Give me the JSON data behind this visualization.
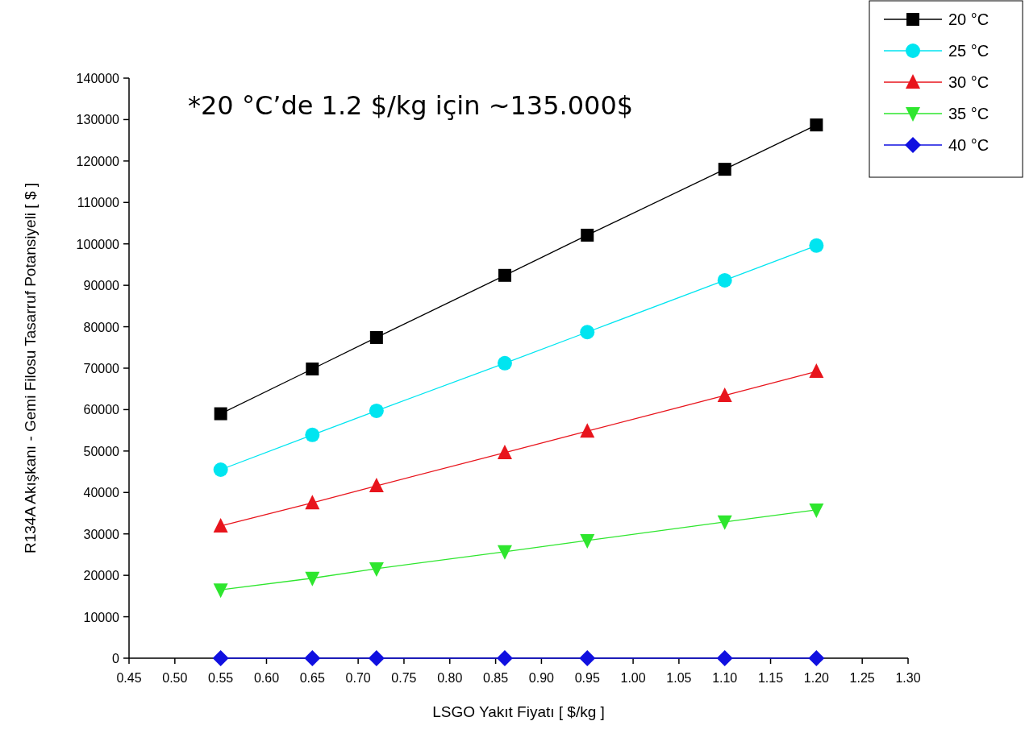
{
  "chart_data": {
    "type": "line",
    "xlabel": "LSGO Yakıt Fiyatı [ $/kg ]",
    "ylabel": "R134A Akışkanı -  Gemi Filosu Tasarruf Potansiyeli [ $ ]",
    "annotations": [
      "*20 °C’de 1.2 $/kg için ~135.000$"
    ],
    "x": [
      0.55,
      0.65,
      0.72,
      0.86,
      0.95,
      1.1,
      1.2
    ],
    "series": [
      {
        "name": "20 °C",
        "color": "#000000",
        "marker": "square",
        "values": [
          59000,
          69800,
          77400,
          92400,
          102100,
          118000,
          128700
        ]
      },
      {
        "name": "25 °C",
        "color": "#00e5f0",
        "marker": "circle",
        "values": [
          45500,
          53900,
          59700,
          71200,
          78700,
          91200,
          99600
        ]
      },
      {
        "name": "30 °C",
        "color": "#e8141c",
        "marker": "triangle",
        "values": [
          31900,
          37500,
          41600,
          49600,
          54800,
          63400,
          69200
        ]
      },
      {
        "name": "35 °C",
        "color": "#2ee62e",
        "marker": "triangle-down",
        "values": [
          16500,
          19300,
          21600,
          25700,
          28400,
          32900,
          35800
        ]
      },
      {
        "name": "40 °C",
        "color": "#1010e0",
        "marker": "diamond",
        "values": [
          0,
          0,
          0,
          0,
          0,
          0,
          0
        ]
      }
    ],
    "xlim": [
      0.45,
      1.3
    ],
    "xticks": [
      {
        "value": 0.45,
        "label": "0.45"
      },
      {
        "value": 0.5,
        "label": "0.50"
      },
      {
        "value": 0.55,
        "label": "0.55"
      },
      {
        "value": 0.6,
        "label": "0.60"
      },
      {
        "value": 0.65,
        "label": "0.65"
      },
      {
        "value": 0.7,
        "label": "0.70"
      },
      {
        "value": 0.75,
        "label": "0.75"
      },
      {
        "value": 0.8,
        "label": "0.80"
      },
      {
        "value": 0.85,
        "label": "0.85"
      },
      {
        "value": 0.9,
        "label": "0.90"
      },
      {
        "value": 0.95,
        "label": "0.95"
      },
      {
        "value": 1.0,
        "label": "1.00"
      },
      {
        "value": 1.05,
        "label": "1.05"
      },
      {
        "value": 1.1,
        "label": "1.10"
      },
      {
        "value": 1.15,
        "label": "1.15"
      },
      {
        "value": 1.2,
        "label": "1.20"
      },
      {
        "value": 1.25,
        "label": "1.25"
      },
      {
        "value": 1.3,
        "label": "1.30"
      }
    ],
    "ylim": [
      0,
      140000
    ],
    "yticks": [
      0,
      10000,
      20000,
      30000,
      40000,
      50000,
      60000,
      70000,
      80000,
      90000,
      100000,
      110000,
      120000,
      130000,
      140000
    ],
    "grid": false,
    "legend": "top right",
    "line_style": "solid"
  }
}
